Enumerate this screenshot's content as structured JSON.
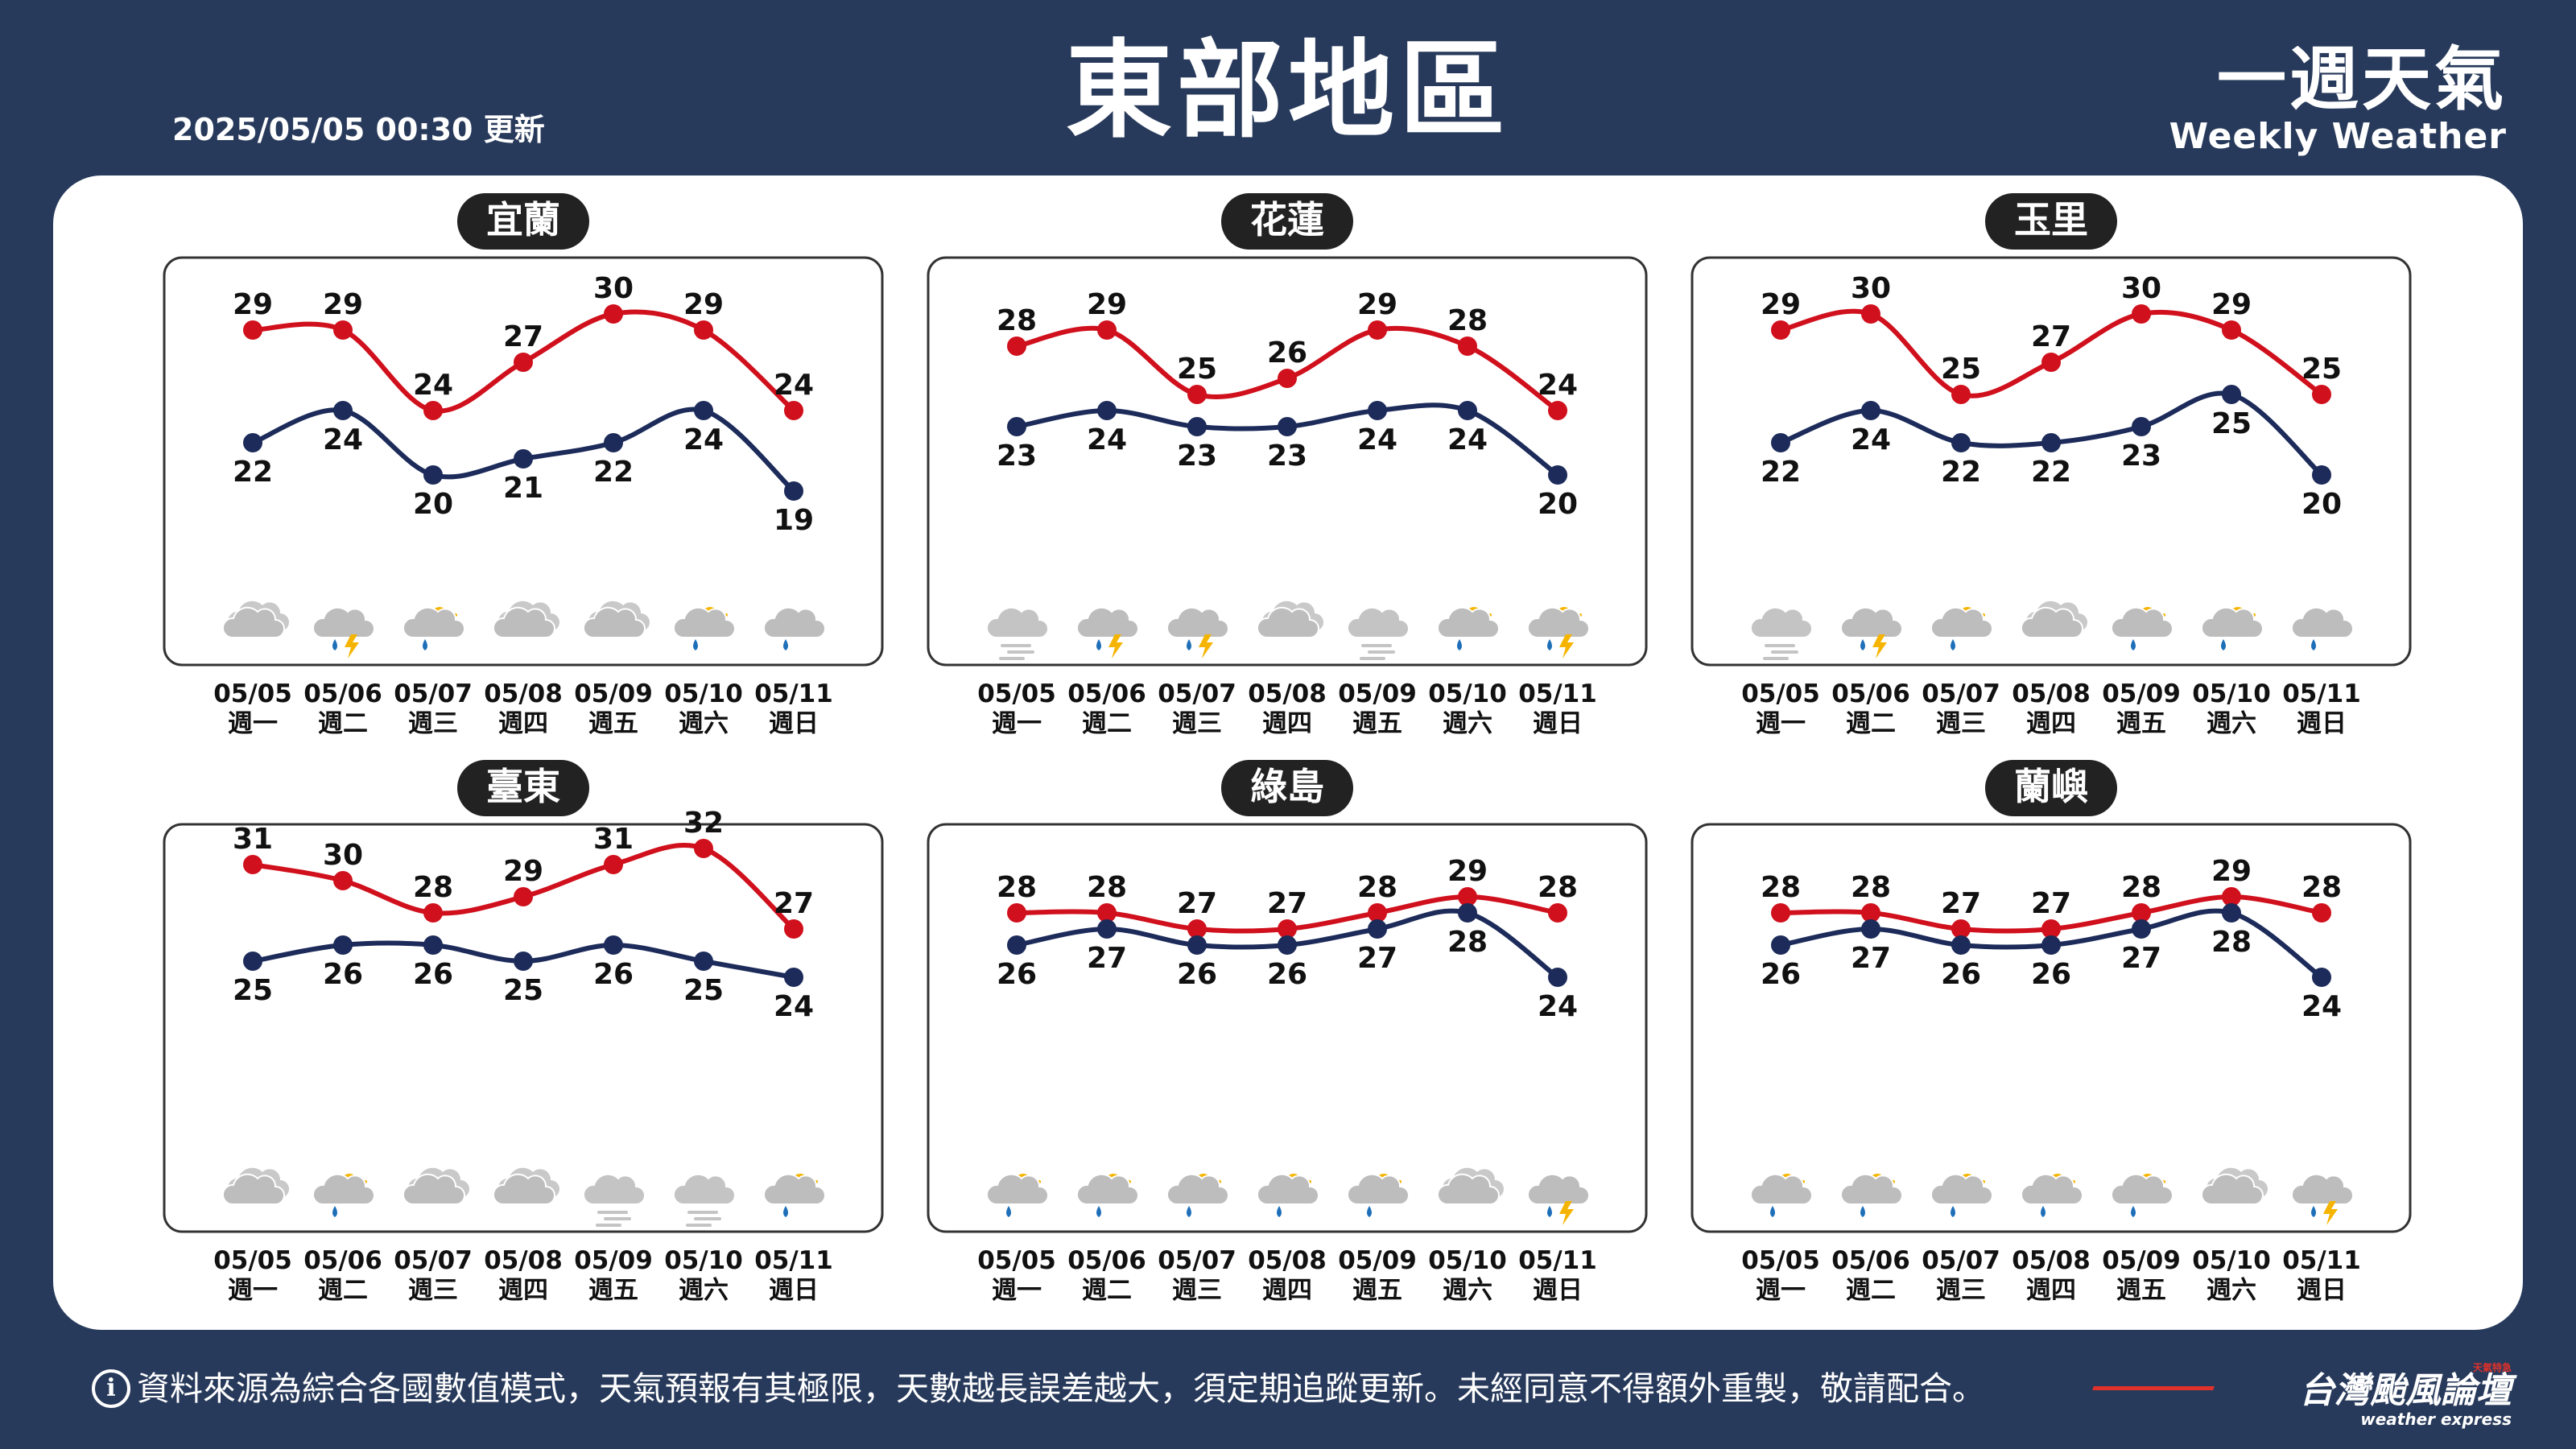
{
  "header": {
    "title": "東部地區",
    "updated": "2025/05/05 00:30 更新",
    "brand_zh": "一週天氣",
    "brand_en": "Weekly Weather"
  },
  "footer": {
    "info_icon": "i",
    "disclaimer": "資料來源為綜合各國數值模式，天氣預報有其極限，天數越長誤差越大，須定期追蹤更新。未經同意不得額外重製，敬請配合。",
    "logo_name": "台灣颱風論壇",
    "logo_en": "weather express",
    "logo_stamp": "天氣特急"
  },
  "colors": {
    "background": "#283a5b",
    "high": "#d0101c",
    "low": "#1c2b5a",
    "label_bg": "#222222"
  },
  "chart_data": [
    {
      "type": "line",
      "title": "宜蘭",
      "categories": [
        "05/05",
        "05/06",
        "05/07",
        "05/08",
        "05/09",
        "05/10",
        "05/11"
      ],
      "weekdays": [
        "週一",
        "週二",
        "週三",
        "週四",
        "週五",
        "週六",
        "週日"
      ],
      "series": [
        {
          "name": "high",
          "values": [
            29,
            29,
            24,
            27,
            30,
            29,
            24
          ]
        },
        {
          "name": "low",
          "values": [
            22,
            24,
            20,
            21,
            22,
            24,
            19
          ]
        }
      ],
      "weather": [
        "cloudy",
        "thunderstorm",
        "partly-cloudy-rain",
        "cloudy",
        "cloudy",
        "partly-cloudy-rain",
        "cloud-rain"
      ]
    },
    {
      "type": "line",
      "title": "花蓮",
      "categories": [
        "05/05",
        "05/06",
        "05/07",
        "05/08",
        "05/09",
        "05/10",
        "05/11"
      ],
      "weekdays": [
        "週一",
        "週二",
        "週三",
        "週四",
        "週五",
        "週六",
        "週日"
      ],
      "series": [
        {
          "name": "high",
          "values": [
            28,
            29,
            25,
            26,
            29,
            28,
            24
          ]
        },
        {
          "name": "low",
          "values": [
            23,
            24,
            23,
            23,
            24,
            24,
            20
          ]
        }
      ],
      "weather": [
        "fog",
        "thunderstorm",
        "thunderstorm",
        "cloudy",
        "fog",
        "partly-cloudy-rain",
        "partly-cloudy-thunder"
      ]
    },
    {
      "type": "line",
      "title": "玉里",
      "categories": [
        "05/05",
        "05/06",
        "05/07",
        "05/08",
        "05/09",
        "05/10",
        "05/11"
      ],
      "weekdays": [
        "週一",
        "週二",
        "週三",
        "週四",
        "週五",
        "週六",
        "週日"
      ],
      "series": [
        {
          "name": "high",
          "values": [
            29,
            30,
            25,
            27,
            30,
            29,
            25
          ]
        },
        {
          "name": "low",
          "values": [
            22,
            24,
            22,
            22,
            23,
            25,
            20
          ]
        }
      ],
      "weather": [
        "fog",
        "thunderstorm",
        "partly-cloudy-rain",
        "cloudy",
        "partly-cloudy-rain",
        "partly-cloudy-rain",
        "cloud-rain"
      ]
    },
    {
      "type": "line",
      "title": "臺東",
      "categories": [
        "05/05",
        "05/06",
        "05/07",
        "05/08",
        "05/09",
        "05/10",
        "05/11"
      ],
      "weekdays": [
        "週一",
        "週二",
        "週三",
        "週四",
        "週五",
        "週六",
        "週日"
      ],
      "series": [
        {
          "name": "high",
          "values": [
            31,
            30,
            28,
            29,
            31,
            32,
            27
          ]
        },
        {
          "name": "low",
          "values": [
            25,
            26,
            26,
            25,
            26,
            25,
            24
          ]
        }
      ],
      "weather": [
        "cloudy",
        "partly-cloudy-rain",
        "cloudy",
        "cloudy",
        "fog",
        "fog",
        "partly-cloudy-rain"
      ]
    },
    {
      "type": "line",
      "title": "綠島",
      "categories": [
        "05/05",
        "05/06",
        "05/07",
        "05/08",
        "05/09",
        "05/10",
        "05/11"
      ],
      "weekdays": [
        "週一",
        "週二",
        "週三",
        "週四",
        "週五",
        "週六",
        "週日"
      ],
      "series": [
        {
          "name": "high",
          "values": [
            28,
            28,
            27,
            27,
            28,
            29,
            28
          ]
        },
        {
          "name": "low",
          "values": [
            26,
            27,
            26,
            26,
            27,
            28,
            24
          ]
        }
      ],
      "weather": [
        "partly-cloudy-rain",
        "partly-cloudy-rain",
        "partly-cloudy-rain",
        "partly-cloudy-rain",
        "partly-cloudy-rain",
        "cloudy",
        "thunderstorm"
      ]
    },
    {
      "type": "line",
      "title": "蘭嶼",
      "categories": [
        "05/05",
        "05/06",
        "05/07",
        "05/08",
        "05/09",
        "05/10",
        "05/11"
      ],
      "weekdays": [
        "週一",
        "週二",
        "週三",
        "週四",
        "週五",
        "週六",
        "週日"
      ],
      "series": [
        {
          "name": "high",
          "values": [
            28,
            28,
            27,
            27,
            28,
            29,
            28
          ]
        },
        {
          "name": "low",
          "values": [
            26,
            27,
            26,
            26,
            27,
            28,
            24
          ]
        }
      ],
      "weather": [
        "partly-cloudy-rain",
        "partly-cloudy-rain",
        "partly-cloudy-rain",
        "partly-cloudy-rain",
        "partly-cloudy-rain",
        "cloudy",
        "thunderstorm"
      ]
    }
  ]
}
